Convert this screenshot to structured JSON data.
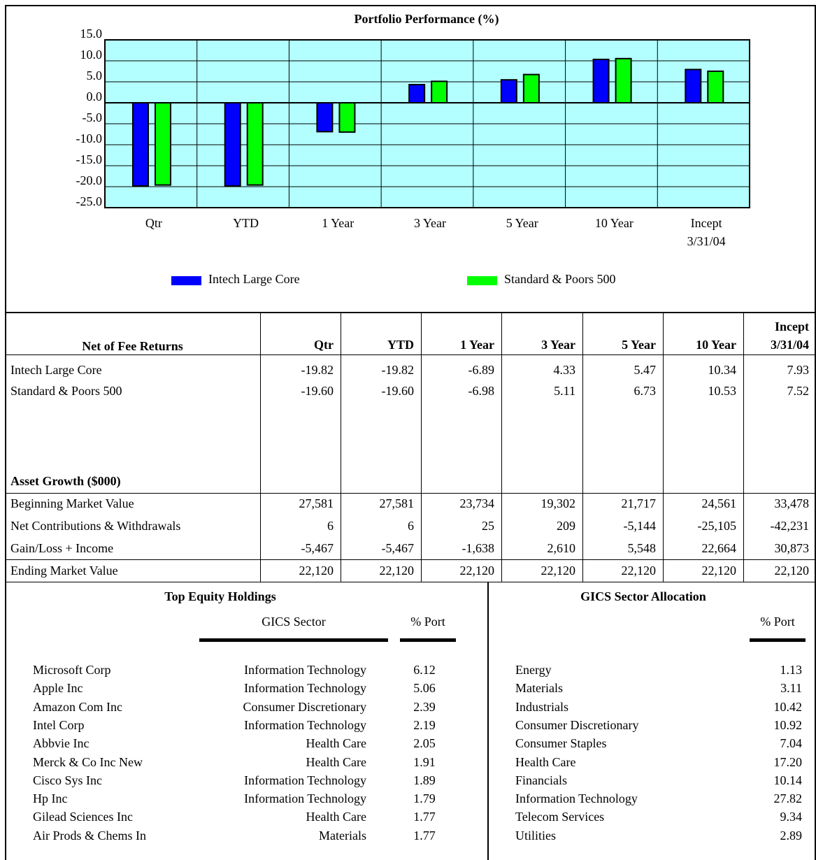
{
  "chart_data": {
    "type": "bar",
    "title": "Portfolio Performance (%)",
    "categories": [
      "Qtr",
      "YTD",
      "1 Year",
      "3 Year",
      "5 Year",
      "10 Year",
      "Incept 3/31/04"
    ],
    "series": [
      {
        "name": "Intech Large Core",
        "color": "#0000ff",
        "values": [
          -19.82,
          -19.82,
          -6.89,
          4.33,
          5.47,
          10.34,
          7.93
        ]
      },
      {
        "name": "Standard & Poors 500",
        "color": "#00ff00",
        "values": [
          -19.6,
          -19.6,
          -6.98,
          5.11,
          6.73,
          10.53,
          7.52
        ]
      }
    ],
    "ylim": [
      -25,
      15
    ],
    "yticks": [
      {
        "value": -25,
        "label": "-25.0"
      },
      {
        "value": -20,
        "label": "-20.0"
      },
      {
        "value": -15,
        "label": "-15.0"
      },
      {
        "value": -10,
        "label": "-10.0"
      },
      {
        "value": -5,
        "label": "-5.0"
      },
      {
        "value": 0,
        "label": "0.0"
      },
      {
        "value": 5,
        "label": "5.0"
      },
      {
        "value": 10,
        "label": "10.0"
      },
      {
        "value": 15,
        "label": "15.0"
      }
    ],
    "grid": true,
    "background": "#b3ffff",
    "legend": "bottom"
  },
  "returns_table": {
    "header": [
      "Net of Fee Returns",
      "Qtr",
      "YTD",
      "1 Year",
      "3 Year",
      "5 Year",
      "10 Year",
      "Incept 3/31/04"
    ],
    "rows": [
      [
        "Intech Large Core",
        "-19.82",
        "-19.82",
        "-6.89",
        "4.33",
        "5.47",
        "10.34",
        "7.93"
      ],
      [
        "Standard & Poors 500",
        "-19.60",
        "-19.60",
        "-6.98",
        "5.11",
        "6.73",
        "10.53",
        "7.52"
      ]
    ]
  },
  "asset_growth": {
    "title": "Asset Growth ($000)",
    "rows": [
      [
        "Beginning Market Value",
        "27,581",
        "27,581",
        "23,734",
        "19,302",
        "21,717",
        "24,561",
        "33,478"
      ],
      [
        "Net Contributions & Withdrawals",
        "6",
        "6",
        "25",
        "209",
        "-5,144",
        "-25,105",
        "-42,231"
      ],
      [
        "Gain/Loss + Income",
        "-5,467",
        "-5,467",
        "-1,638",
        "2,610",
        "5,548",
        "22,664",
        "30,873"
      ],
      [
        "Ending Market Value",
        "22,120",
        "22,120",
        "22,120",
        "22,120",
        "22,120",
        "22,120",
        "22,120"
      ]
    ]
  },
  "holdings": {
    "title": "Top Equity Holdings",
    "columns": [
      "GICS Sector",
      "% Port"
    ],
    "rows": [
      [
        "Microsoft Corp",
        "Information Technology",
        "6.12"
      ],
      [
        "Apple Inc",
        "Information Technology",
        "5.06"
      ],
      [
        "Amazon Com Inc",
        "Consumer Discretionary",
        "2.39"
      ],
      [
        "Intel Corp",
        "Information Technology",
        "2.19"
      ],
      [
        "Abbvie Inc",
        "Health Care",
        "2.05"
      ],
      [
        "Merck & Co Inc New",
        "Health Care",
        "1.91"
      ],
      [
        "Cisco Sys Inc",
        "Information Technology",
        "1.89"
      ],
      [
        "Hp Inc",
        "Information Technology",
        "1.79"
      ],
      [
        "Gilead Sciences Inc",
        "Health Care",
        "1.77"
      ],
      [
        "Air Prods & Chems In",
        "Materials",
        "1.77"
      ]
    ]
  },
  "sectors": {
    "title": "GICS Sector Allocation",
    "column": "% Port",
    "rows": [
      [
        "Energy",
        "1.13"
      ],
      [
        "Materials",
        "3.11"
      ],
      [
        "Industrials",
        "10.42"
      ],
      [
        "Consumer Discretionary",
        "10.92"
      ],
      [
        "Consumer Staples",
        "7.04"
      ],
      [
        "Health Care",
        "17.20"
      ],
      [
        "Financials",
        "10.14"
      ],
      [
        "Information Technology",
        "27.82"
      ],
      [
        "Telecom Services",
        "9.34"
      ],
      [
        "Utilities",
        "2.89"
      ]
    ]
  }
}
